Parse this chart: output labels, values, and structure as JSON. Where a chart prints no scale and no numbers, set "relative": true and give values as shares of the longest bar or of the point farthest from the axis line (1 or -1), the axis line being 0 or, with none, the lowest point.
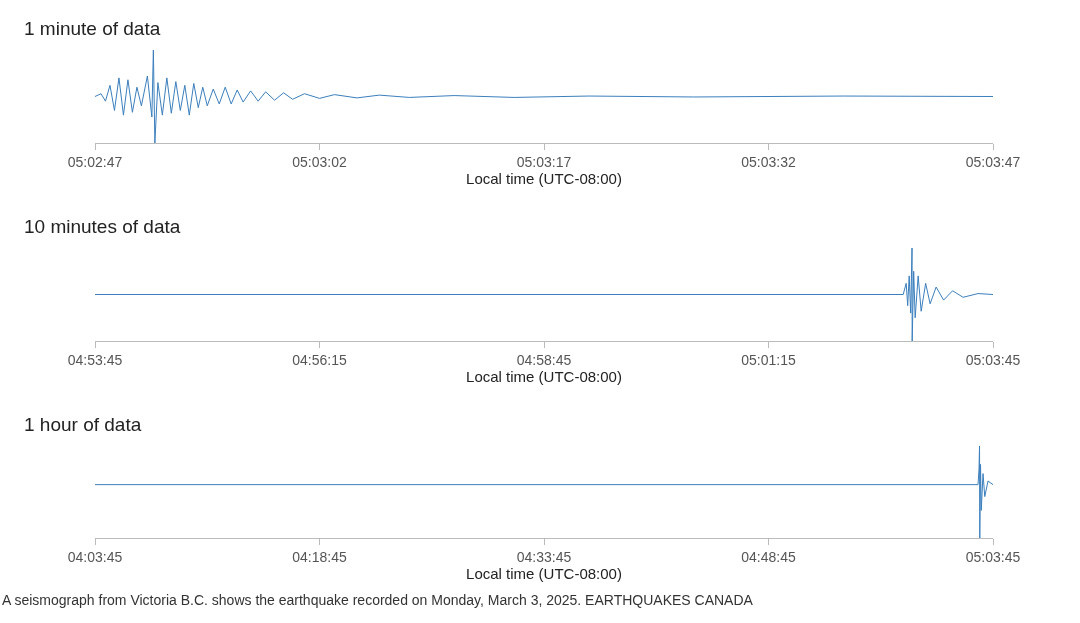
{
  "chart_data": [
    {
      "type": "line",
      "title": "1 minute of data",
      "xlabel": "Local time (UTC-08:00)",
      "relative": true,
      "tick_labels": "x",
      "color": "#3b7fbd",
      "xlim": [
        "2025-03-03T05:02:47",
        "2025-03-03T05:03:47"
      ],
      "xticks": [
        {
          "value": "2025-03-03T05:02:47",
          "label": "05:02:47"
        },
        {
          "value": "2025-03-03T05:03:02",
          "label": "05:03:02"
        },
        {
          "value": "2025-03-03T05:03:17",
          "label": "05:03:17"
        },
        {
          "value": "2025-03-03T05:03:32",
          "label": "05:03:32"
        },
        {
          "value": "2025-03-03T05:03:47",
          "label": "05:03:47"
        }
      ],
      "x": [
        "2025-03-03T05:02:47",
        "2025-03-03T05:02:47.4",
        "2025-03-03T05:02:47.7",
        "2025-03-03T05:02:48",
        "2025-03-03T05:02:48.3",
        "2025-03-03T05:02:48.6",
        "2025-03-03T05:02:48.9",
        "2025-03-03T05:02:49.2",
        "2025-03-03T05:02:49.5",
        "2025-03-03T05:02:49.8",
        "2025-03-03T05:02:50.1",
        "2025-03-03T05:02:50.5",
        "2025-03-03T05:02:50.8",
        "2025-03-03T05:02:50.9",
        "2025-03-03T05:02:51",
        "2025-03-03T05:02:51.2",
        "2025-03-03T05:02:51.5",
        "2025-03-03T05:02:51.8",
        "2025-03-03T05:02:52.1",
        "2025-03-03T05:02:52.4",
        "2025-03-03T05:02:52.7",
        "2025-03-03T05:02:53",
        "2025-03-03T05:02:53.3",
        "2025-03-03T05:02:53.6",
        "2025-03-03T05:02:53.9",
        "2025-03-03T05:02:54.2",
        "2025-03-03T05:02:54.5",
        "2025-03-03T05:02:54.9",
        "2025-03-03T05:02:55.3",
        "2025-03-03T05:02:55.7",
        "2025-03-03T05:02:56.1",
        "2025-03-03T05:02:56.5",
        "2025-03-03T05:02:56.9",
        "2025-03-03T05:02:57.4",
        "2025-03-03T05:02:57.9",
        "2025-03-03T05:02:58.4",
        "2025-03-03T05:02:59",
        "2025-03-03T05:02:59.6",
        "2025-03-03T05:03:00.2",
        "2025-03-03T05:03:01",
        "2025-03-03T05:03:02",
        "2025-03-03T05:03:03",
        "2025-03-03T05:03:04.5",
        "2025-03-03T05:03:06",
        "2025-03-03T05:03:08",
        "2025-03-03T05:03:11",
        "2025-03-03T05:03:15",
        "2025-03-03T05:03:20",
        "2025-03-03T05:03:27",
        "2025-03-03T05:03:37",
        "2025-03-03T05:03:47"
      ],
      "values": [
        0.5,
        0.53,
        0.45,
        0.62,
        0.35,
        0.7,
        0.3,
        0.68,
        0.33,
        0.6,
        0.4,
        0.72,
        0.28,
        1,
        0,
        0.65,
        0.3,
        0.7,
        0.32,
        0.66,
        0.35,
        0.62,
        0.3,
        0.64,
        0.38,
        0.6,
        0.4,
        0.58,
        0.42,
        0.6,
        0.42,
        0.57,
        0.44,
        0.56,
        0.45,
        0.55,
        0.46,
        0.54,
        0.47,
        0.53,
        0.48,
        0.52,
        0.485,
        0.515,
        0.49,
        0.51,
        0.49,
        0.505,
        0.495,
        0.505,
        0.5
      ]
    },
    {
      "type": "line",
      "title": "10 minutes of data",
      "xlabel": "Local time (UTC-08:00)",
      "relative": true,
      "tick_labels": "x",
      "color": "#3b7fbd",
      "xlim": [
        "2025-03-03T04:53:45",
        "2025-03-03T05:03:45"
      ],
      "xticks": [
        {
          "value": "2025-03-03T04:53:45",
          "label": "04:53:45"
        },
        {
          "value": "2025-03-03T04:56:15",
          "label": "04:56:15"
        },
        {
          "value": "2025-03-03T04:58:45",
          "label": "04:58:45"
        },
        {
          "value": "2025-03-03T05:01:15",
          "label": "05:01:15"
        },
        {
          "value": "2025-03-03T05:03:45",
          "label": "05:03:45"
        }
      ],
      "x": [
        "2025-03-03T04:53:45",
        "2025-03-03T04:58:45",
        "2025-03-03T05:02:45",
        "2025-03-03T05:02:47",
        "2025-03-03T05:02:48",
        "2025-03-03T05:02:49",
        "2025-03-03T05:02:50",
        "2025-03-03T05:02:50.9",
        "2025-03-03T05:02:51",
        "2025-03-03T05:02:52",
        "2025-03-03T05:02:53",
        "2025-03-03T05:02:55",
        "2025-03-03T05:02:57",
        "2025-03-03T05:03:00",
        "2025-03-03T05:03:03",
        "2025-03-03T05:03:07",
        "2025-03-03T05:03:12",
        "2025-03-03T05:03:18",
        "2025-03-03T05:03:25",
        "2025-03-03T05:03:35",
        "2025-03-03T05:03:45"
      ],
      "values": [
        0.5,
        0.5,
        0.5,
        0.62,
        0.38,
        0.7,
        0.3,
        1,
        0,
        0.75,
        0.25,
        0.7,
        0.32,
        0.62,
        0.4,
        0.58,
        0.44,
        0.54,
        0.47,
        0.51,
        0.5
      ]
    },
    {
      "type": "line",
      "title": "1 hour of data",
      "xlabel": "Local time (UTC-08:00)",
      "relative": true,
      "tick_labels": "x",
      "color": "#3b7fbd",
      "xlim": [
        "2025-03-03T04:03:45",
        "2025-03-03T05:03:45"
      ],
      "xticks": [
        {
          "value": "2025-03-03T04:03:45",
          "label": "04:03:45"
        },
        {
          "value": "2025-03-03T04:18:45",
          "label": "04:18:45"
        },
        {
          "value": "2025-03-03T04:33:45",
          "label": "04:33:45"
        },
        {
          "value": "2025-03-03T04:48:45",
          "label": "04:48:45"
        },
        {
          "value": "2025-03-03T05:03:45",
          "label": "05:03:45"
        }
      ],
      "x": [
        "2025-03-03T04:03:45",
        "2025-03-03T04:33:45",
        "2025-03-03T05:02:45",
        "2025-03-03T05:02:49",
        "2025-03-03T05:02:51",
        "2025-03-03T05:02:52",
        "2025-03-03T05:02:55",
        "2025-03-03T05:02:58",
        "2025-03-03T05:03:05",
        "2025-03-03T05:03:12",
        "2025-03-03T05:03:25",
        "2025-03-03T05:03:45"
      ],
      "values": [
        0.58,
        0.58,
        0.58,
        0.75,
        1,
        0,
        0.8,
        0.3,
        0.7,
        0.45,
        0.62,
        0.58
      ],
      "annotations": [
        "A seismograph from Victoria B.C. shows the earthquake recorded on Monday, March 3, 2025. EARTHQUAKES CANADA"
      ]
    }
  ]
}
